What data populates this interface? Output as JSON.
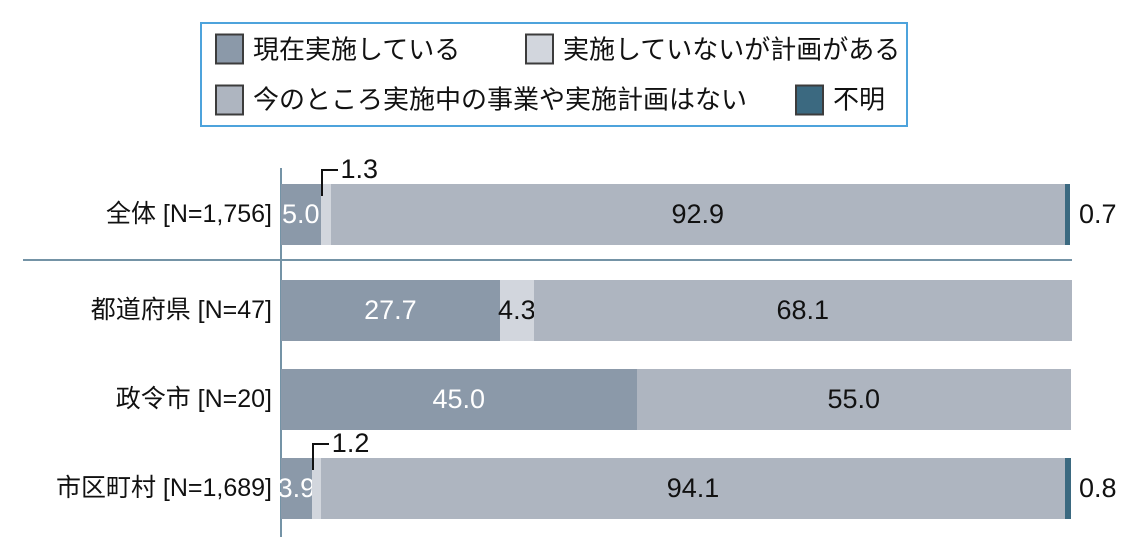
{
  "legend": {
    "border_color": "#4da3dc",
    "rows": [
      {
        "items": [
          {
            "label": "現在実施している",
            "color": "#8b99a9"
          },
          {
            "label": "実施していないが計画がある",
            "color": "#d2d6dd"
          }
        ]
      },
      {
        "items": [
          {
            "label": "今のところ実施中の事業や実施計画はない",
            "color": "#aeb5c0"
          },
          {
            "label": "不明",
            "color": "#3b6980"
          }
        ]
      }
    ]
  },
  "chart_data": {
    "type": "bar",
    "orientation": "horizontal-stacked",
    "unit": "%",
    "xlim": [
      0,
      100
    ],
    "grid": false,
    "legend_position": "top",
    "categories": [
      "全体 [N=1,756]",
      "都道府県 [N=47]",
      "政令市 [N=20]",
      "市区町村 [N=1,689]"
    ],
    "series": [
      {
        "name": "現在実施している",
        "color": "#8b99a9",
        "values": [
          5.0,
          27.7,
          45.0,
          3.9
        ]
      },
      {
        "name": "実施していないが計画がある",
        "color": "#d2d6dd",
        "values": [
          1.3,
          4.3,
          0.0,
          1.2
        ]
      },
      {
        "name": "今のところ実施中の事業や実施計画はない",
        "color": "#aeb5c0",
        "values": [
          92.9,
          68.1,
          55.0,
          94.1
        ]
      },
      {
        "name": "不明",
        "color": "#3b6980",
        "values": [
          0.7,
          0.0,
          0.0,
          0.8
        ]
      }
    ],
    "annotations": [
      {
        "category": "全体 [N=1,756]",
        "series": "実施していないが計画がある",
        "text": "1.3",
        "style": "callout"
      },
      {
        "category": "市区町村 [N=1,689]",
        "series": "実施していないが計画がある",
        "text": "1.2",
        "style": "callout"
      }
    ]
  }
}
